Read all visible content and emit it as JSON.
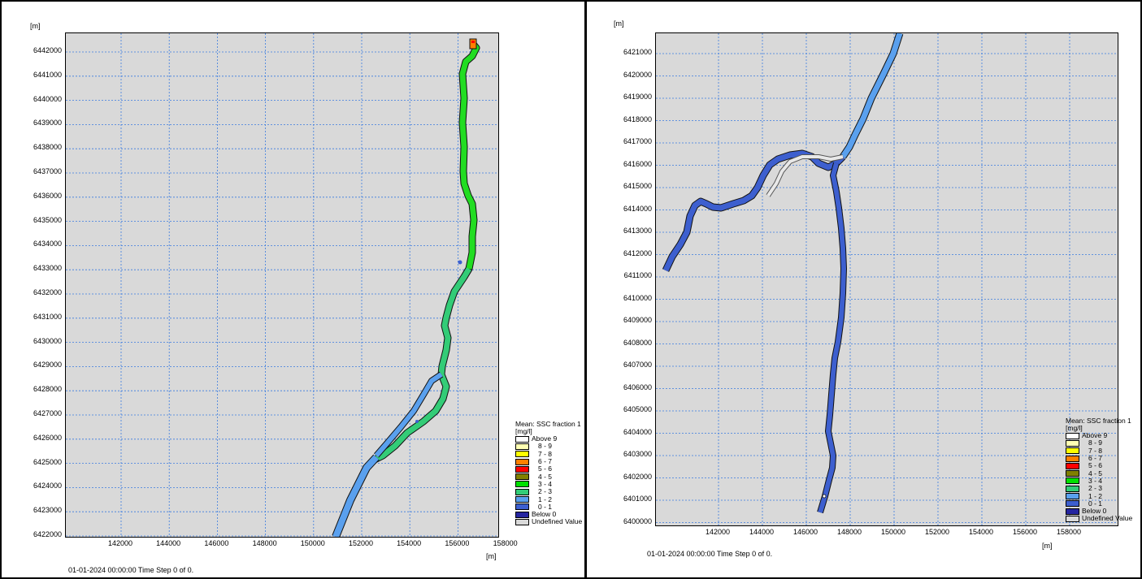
{
  "unit_label": "[m]",
  "time_label": "01-01-2024 00:00:00  Time Step 0 of 0.",
  "legend": {
    "title": "Mean: SSC fraction 1",
    "unit": "[mg/l]",
    "items": [
      {
        "label": "Above 9",
        "color": "#ffffff"
      },
      {
        "label": "8 - 9",
        "color": "#ffffb3"
      },
      {
        "label": "7 - 8",
        "color": "#ffff00"
      },
      {
        "label": "6 - 7",
        "color": "#ff8000"
      },
      {
        "label": "5 - 6",
        "color": "#ff0000"
      },
      {
        "label": "4 - 5",
        "color": "#808000"
      },
      {
        "label": "3 - 4",
        "color": "#00e000"
      },
      {
        "label": "2 - 3",
        "color": "#33cc77"
      },
      {
        "label": "1 - 2",
        "color": "#5aa0ee"
      },
      {
        "label": "0 - 1",
        "color": "#3d5fcf"
      },
      {
        "label": "Below 0",
        "color": "#2525a0"
      },
      {
        "label": "Undefined Value",
        "color": "#d9d9d9"
      }
    ]
  },
  "maps": [
    {
      "y_ticks": [
        "6442000",
        "6441000",
        "6440000",
        "6439000",
        "6438000",
        "6437000",
        "6436000",
        "6435000",
        "6434000",
        "6433000",
        "6432000",
        "6431000",
        "6430000",
        "6429000",
        "6428000",
        "6427000",
        "6426000",
        "6425000",
        "6424000",
        "6423000",
        "6422000"
      ],
      "x_ticks": [
        "142000",
        "144000",
        "146000",
        "148000",
        "150000",
        "152000",
        "154000",
        "156000",
        "158000"
      ]
    },
    {
      "y_ticks": [
        "6421000",
        "6420000",
        "6419000",
        "6418000",
        "6417000",
        "6416000",
        "6415000",
        "6414000",
        "6413000",
        "6412000",
        "6411000",
        "6410000",
        "6409000",
        "6408000",
        "6407000",
        "6406000",
        "6405000",
        "6404000",
        "6403000",
        "6402000",
        "6401000",
        "6400000"
      ],
      "x_ticks": [
        "142000",
        "144000",
        "146000",
        "148000",
        "150000",
        "152000",
        "154000",
        "156000",
        "158000"
      ]
    }
  ]
}
